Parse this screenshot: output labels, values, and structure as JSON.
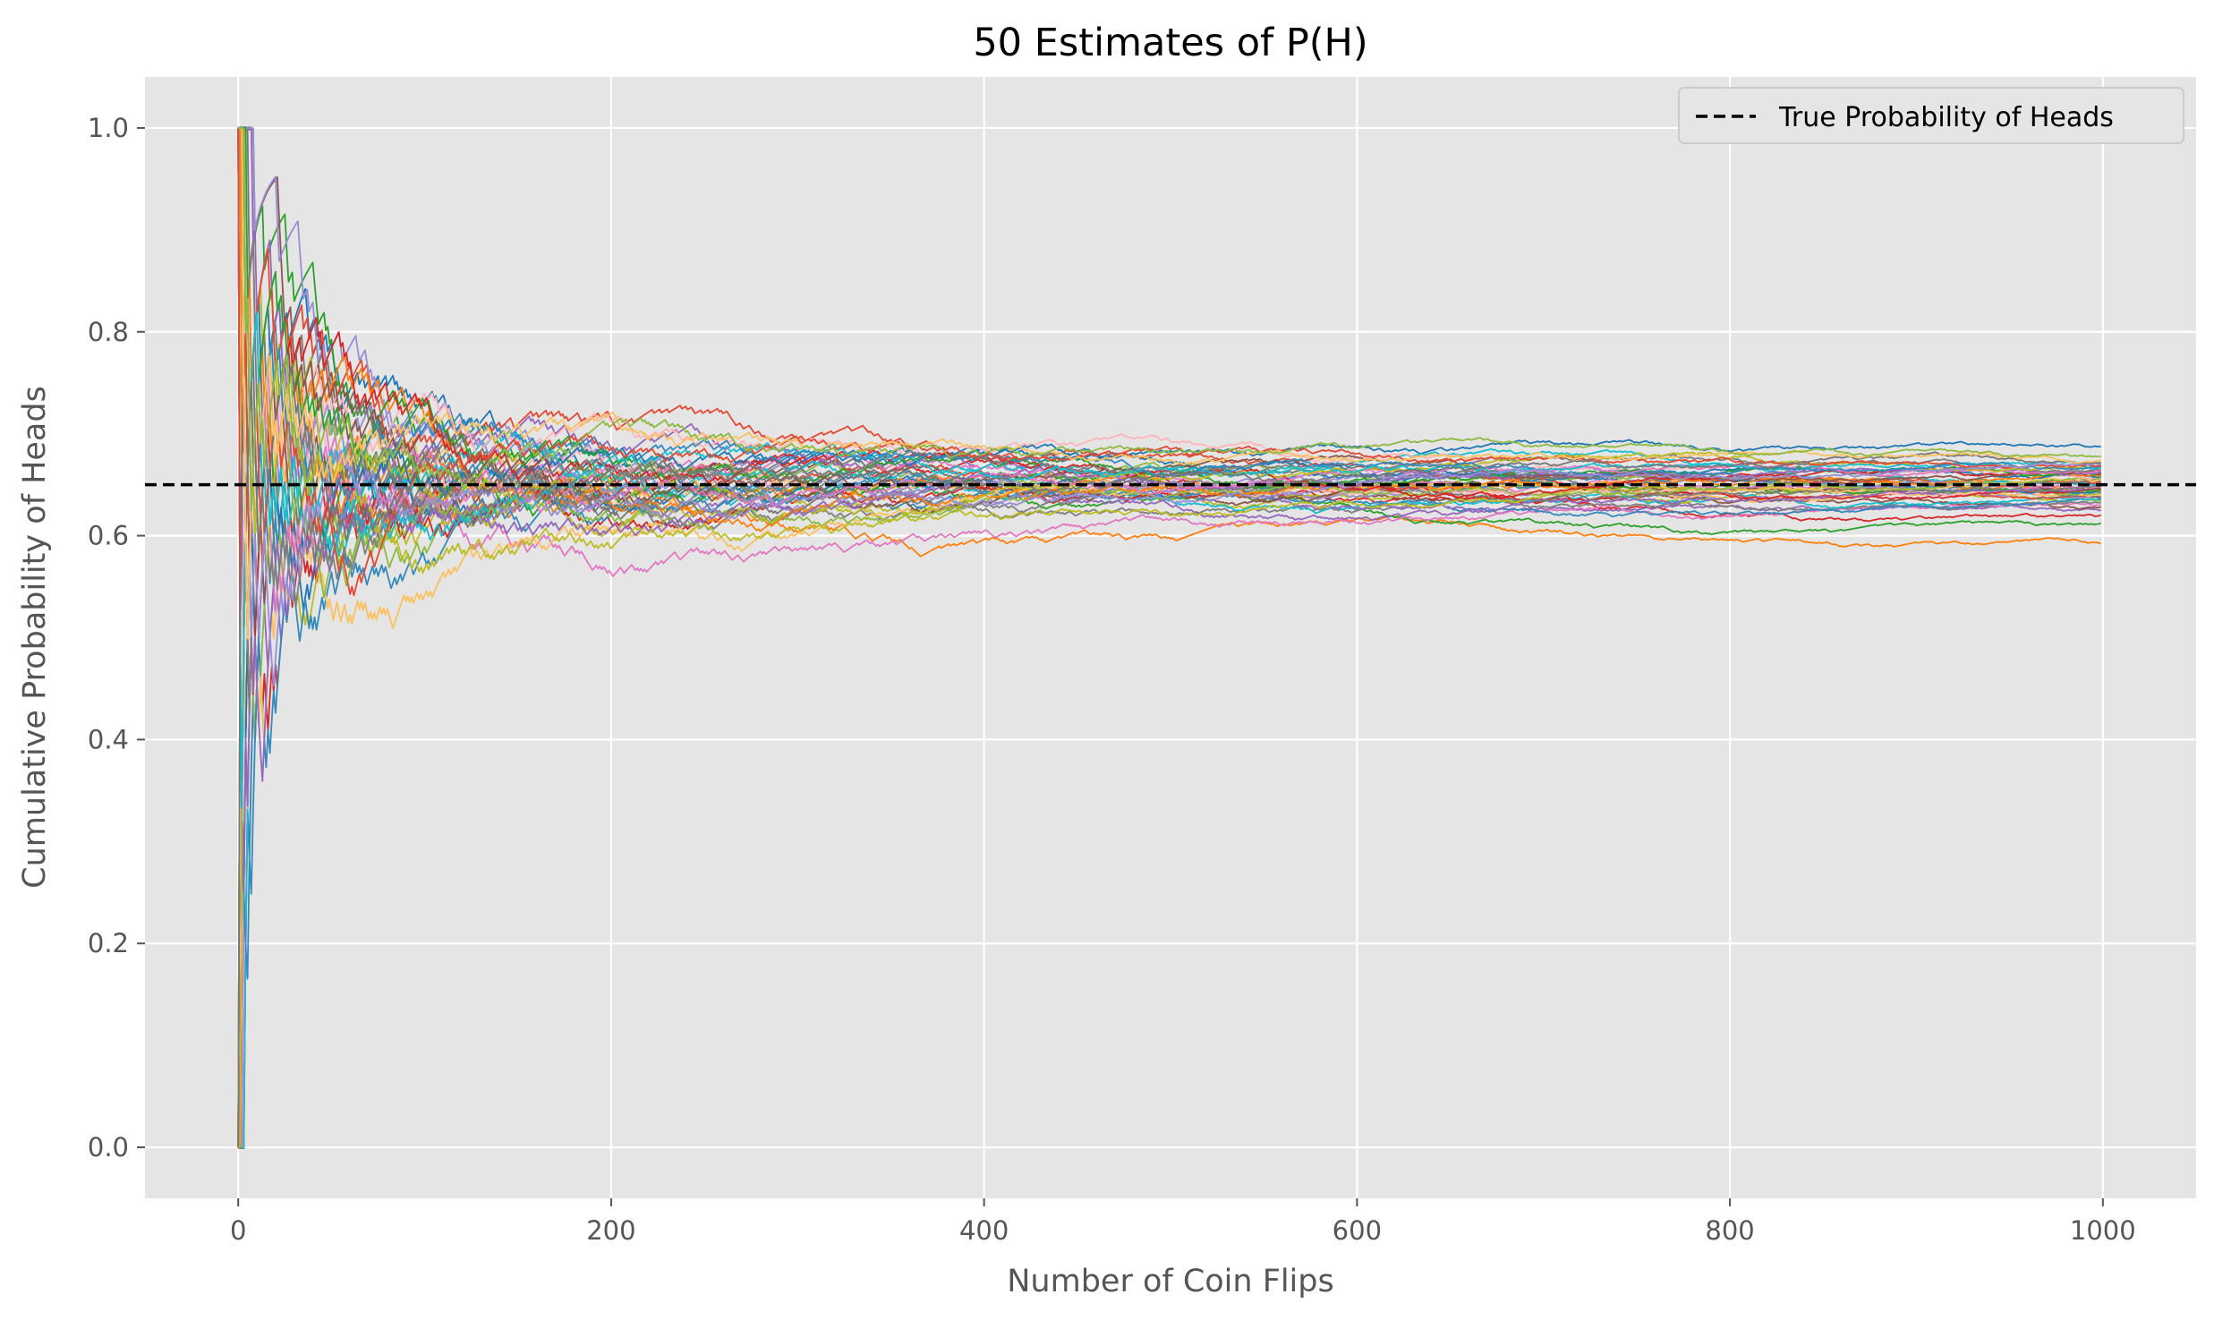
{
  "chart_data": {
    "type": "line",
    "title": "50 Estimates of P(H)",
    "xlabel": "Number of Coin Flips",
    "ylabel": "Cumulative Probability of Heads",
    "xlim": [
      -50,
      1050
    ],
    "ylim": [
      -0.05,
      1.05
    ],
    "xticks": [
      0,
      200,
      400,
      600,
      800,
      1000
    ],
    "xtick_labels": [
      "0",
      "200",
      "400",
      "600",
      "800",
      "1000"
    ],
    "yticks": [
      0.0,
      0.2,
      0.4,
      0.6,
      0.8,
      1.0
    ],
    "ytick_labels": [
      "0.0",
      "0.2",
      "0.4",
      "0.6",
      "0.8",
      "1.0"
    ],
    "grid": true,
    "background": "#e5e5e5",
    "legend": {
      "placement": "upper-right",
      "entries": [
        {
          "label": "True Probability of Heads",
          "style": "dashed",
          "color": "#000000"
        }
      ]
    },
    "reference_line": {
      "y": 0.65,
      "label": "True Probability of Heads",
      "style": "dashed",
      "color": "#000000"
    },
    "n_series": 50,
    "n_points": 1000,
    "palette": [
      "#1f77b4",
      "#ff7f0e",
      "#2ca02c",
      "#d62728",
      "#9467bd",
      "#8c564b",
      "#e377c2",
      "#7f7f7f",
      "#bcbd22",
      "#17becf",
      "#348abd",
      "#e24a33",
      "#988ed5",
      "#777777",
      "#fbc15e",
      "#8eba42",
      "#ffb5b8"
    ],
    "series_final_values": [
      0.687,
      0.592,
      0.612,
      0.62,
      0.625,
      0.628,
      0.63,
      0.632,
      0.634,
      0.635,
      0.636,
      0.637,
      0.638,
      0.639,
      0.64,
      0.641,
      0.642,
      0.643,
      0.644,
      0.645,
      0.646,
      0.646,
      0.647,
      0.648,
      0.649,
      0.65,
      0.65,
      0.651,
      0.652,
      0.653,
      0.654,
      0.655,
      0.656,
      0.657,
      0.658,
      0.659,
      0.66,
      0.661,
      0.662,
      0.663,
      0.664,
      0.665,
      0.666,
      0.667,
      0.668,
      0.669,
      0.67,
      0.672,
      0.674,
      0.678
    ]
  }
}
